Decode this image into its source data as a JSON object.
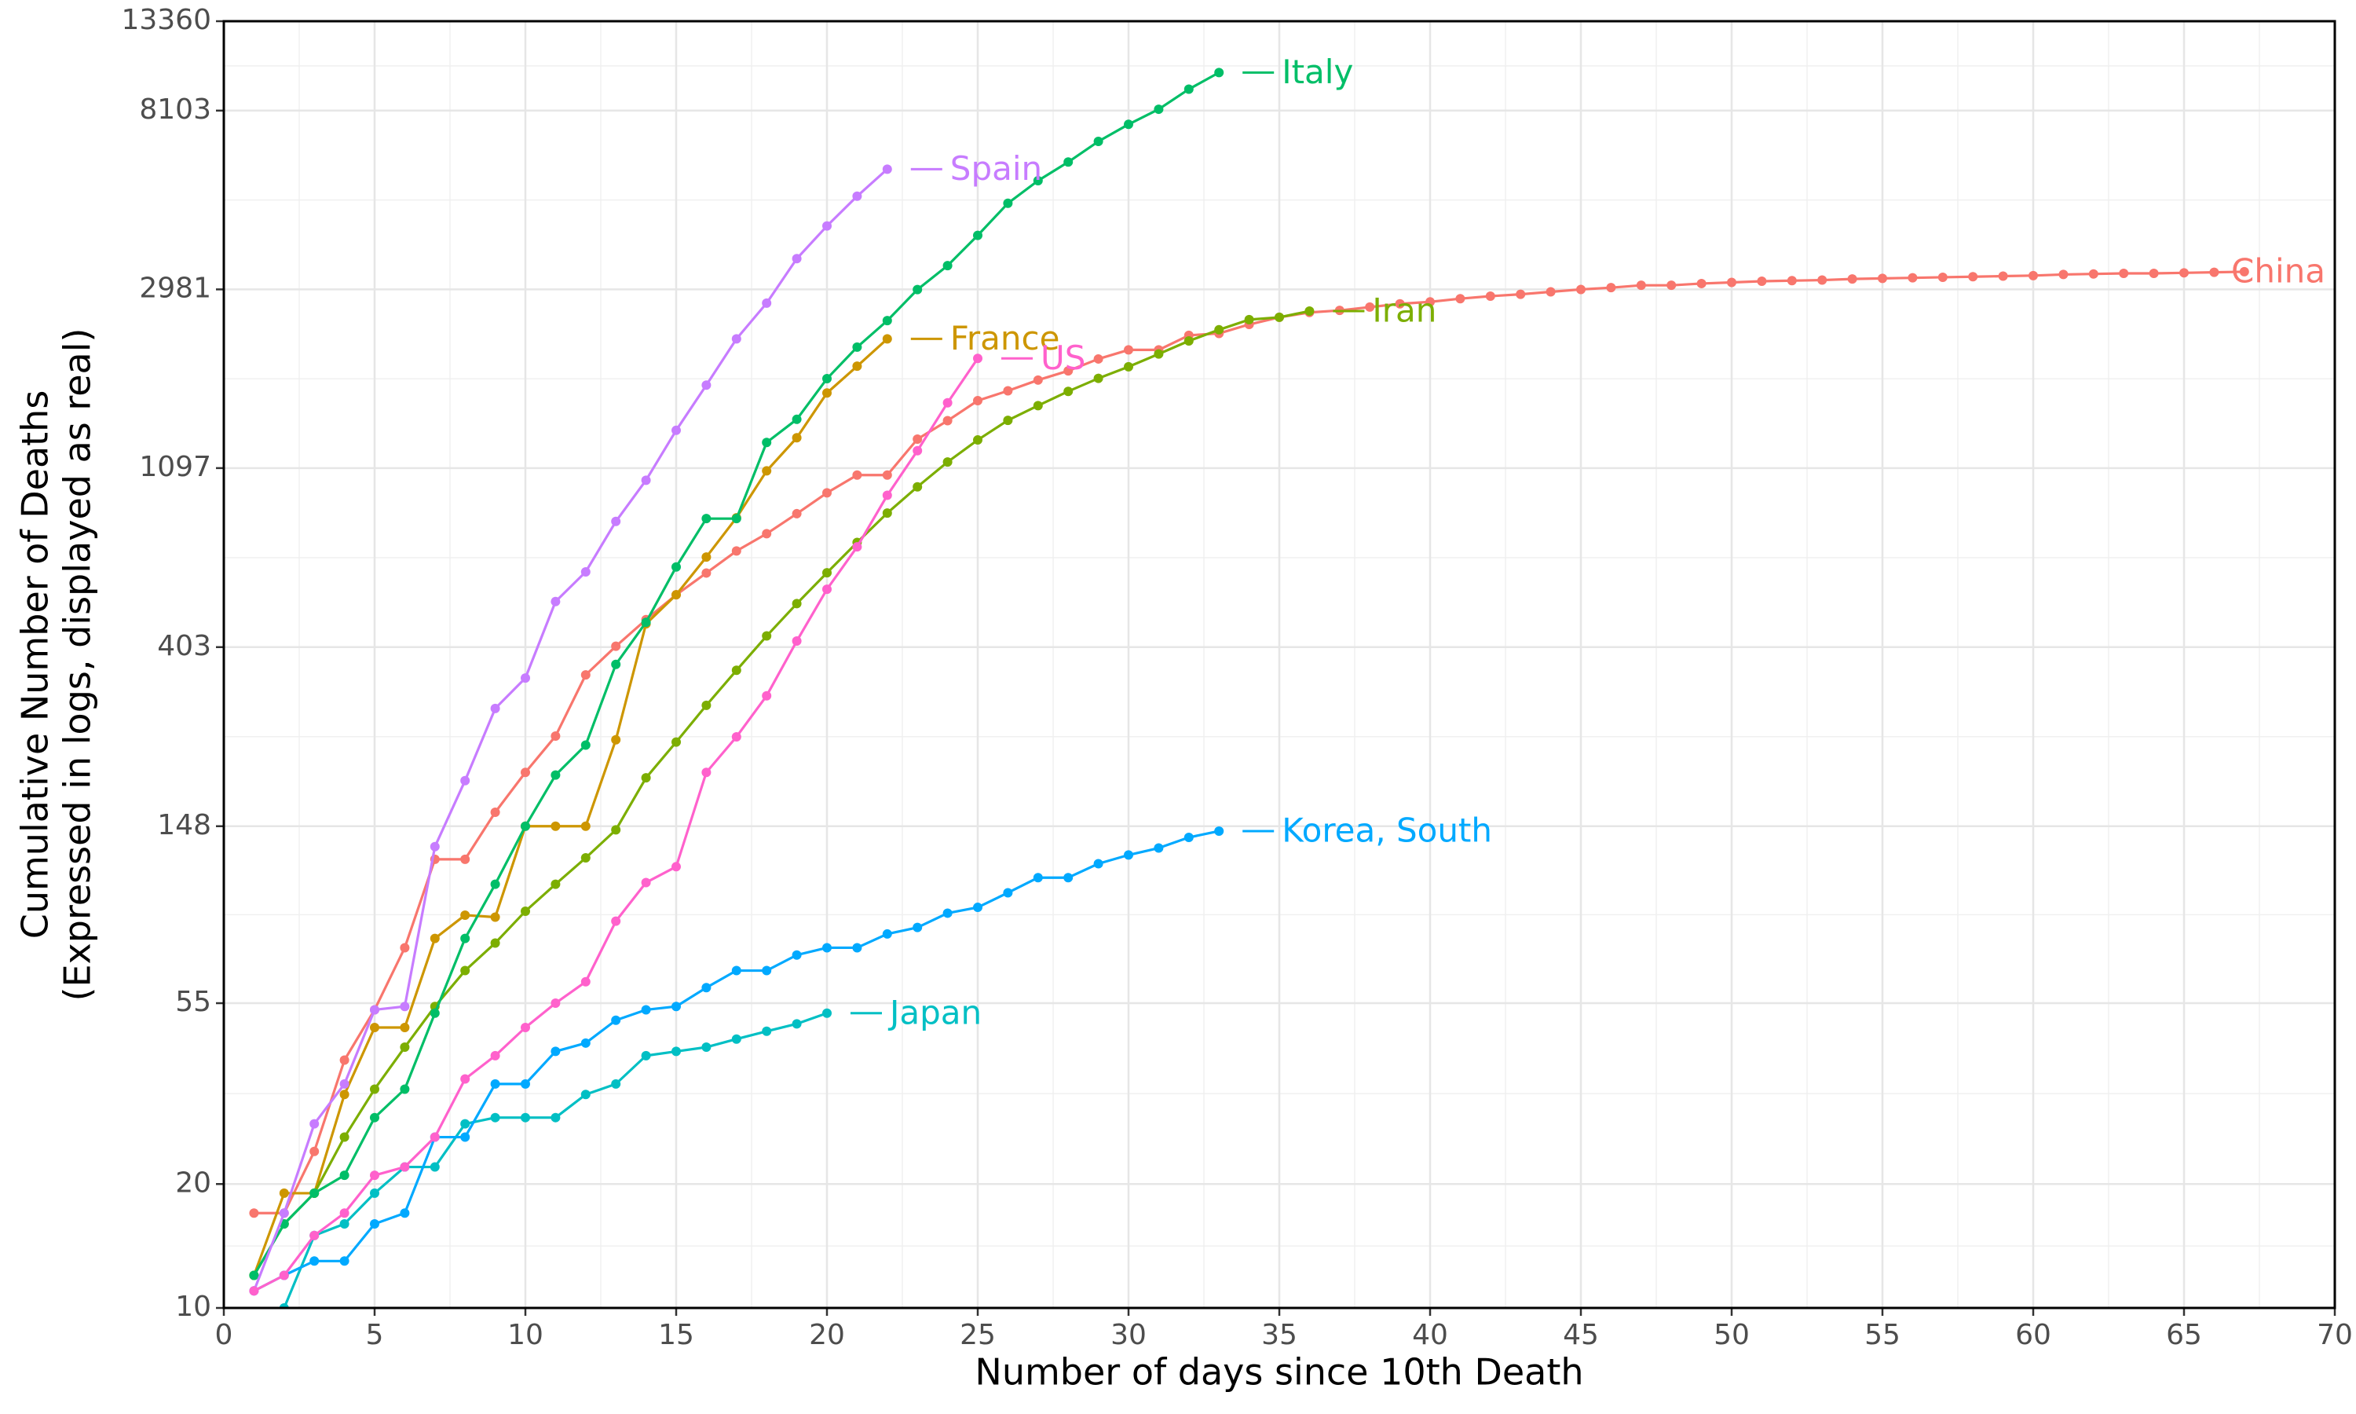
{
  "chart_data": {
    "type": "line",
    "xlabel": "Number of days since 10th Death",
    "ylabel": [
      "Cumulative Number of Deaths",
      "(Expressed in logs, displayed as real)"
    ],
    "xlim": [
      0,
      70
    ],
    "xticks": [
      0,
      5,
      10,
      15,
      20,
      25,
      30,
      35,
      40,
      45,
      50,
      55,
      60,
      65,
      70
    ],
    "ylim": [
      10,
      13360
    ],
    "yticks": [
      10,
      20,
      55,
      148,
      403,
      1097,
      2981,
      8103,
      13360
    ],
    "y_scale": "log",
    "grid": true,
    "series": [
      {
        "name": "China",
        "color": "#F8766D",
        "x": [
          1,
          2,
          3,
          4,
          5,
          6,
          7,
          8,
          9,
          10,
          11,
          12,
          13,
          14,
          15,
          16,
          17,
          18,
          19,
          20,
          21,
          22,
          23,
          24,
          25,
          26,
          27,
          28,
          29,
          30,
          31,
          32,
          33,
          34,
          35,
          36,
          37,
          38,
          39,
          40,
          41,
          42,
          43,
          44,
          45,
          46,
          47,
          48,
          49,
          50,
          51,
          52,
          53,
          54,
          55,
          56,
          57,
          58,
          59,
          60,
          61,
          62,
          63,
          64,
          65,
          66,
          67
        ],
        "values": [
          17,
          17,
          24,
          40,
          53,
          75,
          123,
          123,
          160,
          200,
          245,
          345,
          405,
          470,
          540,
          610,
          690,
          760,
          850,
          955,
          1055,
          1055,
          1290,
          1430,
          1600,
          1690,
          1795,
          1890,
          2020,
          2125,
          2125,
          2305,
          2330,
          2450,
          2550,
          2620,
          2650,
          2700,
          2750,
          2780,
          2830,
          2870,
          2900,
          2940,
          2980,
          3010,
          3050,
          3050,
          3080,
          3100,
          3120,
          3130,
          3140,
          3160,
          3170,
          3180,
          3190,
          3200,
          3210,
          3220,
          3240,
          3250,
          3260,
          3260,
          3270,
          3280,
          3290
        ]
      },
      {
        "name": "France",
        "color": "#CD9600",
        "x": [
          1,
          2,
          3,
          4,
          5,
          6,
          7,
          8,
          9,
          10,
          11,
          12,
          13,
          14,
          15,
          16,
          17,
          18,
          19,
          20,
          21,
          22
        ],
        "values": [
          12,
          19,
          19,
          33,
          48,
          48,
          79,
          90,
          89,
          148,
          148,
          148,
          240,
          459,
          540,
          667,
          831,
          1080,
          1300,
          1670,
          1940,
          2260
        ]
      },
      {
        "name": "Iran",
        "color": "#7CAE00",
        "x": [
          1,
          2,
          3,
          4,
          5,
          6,
          7,
          8,
          9,
          10,
          11,
          12,
          13,
          14,
          15,
          16,
          17,
          18,
          19,
          20,
          21,
          22,
          23,
          24,
          25,
          26,
          27,
          28,
          29,
          30,
          31,
          32,
          33,
          34,
          35,
          36
        ],
        "values": [
          12,
          16,
          19,
          26,
          34,
          43,
          54,
          66,
          77,
          92,
          107,
          124,
          145,
          194,
          237,
          291,
          354,
          429,
          514,
          611,
          724,
          853,
          988,
          1135,
          1284,
          1433,
          1556,
          1685,
          1812,
          1934,
          2077,
          2234,
          2378,
          2517,
          2550,
          2640
        ]
      },
      {
        "name": "Italy",
        "color": "#00BE67",
        "x": [
          1,
          2,
          3,
          4,
          5,
          6,
          7,
          8,
          9,
          10,
          11,
          12,
          13,
          14,
          15,
          16,
          17,
          18,
          19,
          20,
          21,
          22,
          23,
          24,
          25,
          26,
          27,
          28,
          29,
          30,
          31,
          32,
          33
        ],
        "values": [
          12,
          16,
          19,
          21,
          29,
          34,
          52,
          79,
          107,
          148,
          197,
          233,
          366,
          463,
          631,
          827,
          827,
          1266,
          1441,
          1809,
          2158,
          2503,
          2978,
          3405,
          4032,
          4825,
          5476,
          6077,
          6820,
          7503,
          8165,
          9134,
          10023
        ]
      },
      {
        "name": "Japan",
        "color": "#00BFC4",
        "x": [
          2,
          3,
          4,
          5,
          6,
          7,
          8,
          9,
          10,
          11,
          12,
          13,
          14,
          15,
          16,
          17,
          18,
          19,
          20
        ],
        "values": [
          10,
          15,
          16,
          19,
          22,
          22,
          28,
          29,
          29,
          29,
          33,
          35,
          41,
          42,
          43,
          45,
          47,
          49,
          52
        ]
      },
      {
        "name": "Korea, South",
        "color": "#00A9FF",
        "x": [
          1,
          2,
          3,
          4,
          5,
          6,
          7,
          8,
          9,
          10,
          11,
          12,
          13,
          14,
          15,
          16,
          17,
          18,
          19,
          20,
          21,
          22,
          23,
          24,
          25,
          26,
          27,
          28,
          29,
          30,
          31,
          32,
          33
        ],
        "values": [
          11,
          12,
          13,
          13,
          16,
          17,
          26,
          26,
          35,
          35,
          42,
          44,
          50,
          53,
          54,
          60,
          66,
          66,
          72,
          75,
          75,
          81,
          84,
          91,
          94,
          102,
          111,
          111,
          120,
          126,
          131,
          139,
          144
        ]
      },
      {
        "name": "Spain",
        "color": "#C77CFF",
        "x": [
          1,
          2,
          3,
          4,
          5,
          6,
          7,
          8,
          9,
          10,
          11,
          12,
          13,
          14,
          15,
          16,
          17,
          18,
          19,
          20,
          21,
          22
        ],
        "values": [
          11,
          17,
          28,
          35,
          53,
          54,
          132,
          191,
          286,
          339,
          520,
          614,
          814,
          1025,
          1355,
          1745,
          2260,
          2760,
          3540,
          4250,
          5020,
          5840
        ]
      },
      {
        "name": "US",
        "color": "#FF61CC",
        "x": [
          1,
          2,
          3,
          4,
          5,
          6,
          7,
          8,
          9,
          10,
          11,
          12,
          13,
          14,
          15,
          16,
          17,
          18,
          19,
          20,
          21,
          22,
          23,
          24,
          25
        ],
        "values": [
          11,
          12,
          15,
          17,
          21,
          22,
          26,
          36,
          41,
          48,
          55,
          62,
          87,
          108,
          118,
          200,
          244,
          307,
          417,
          557,
          706,
          942,
          1209,
          1581,
          2026
        ]
      }
    ]
  }
}
